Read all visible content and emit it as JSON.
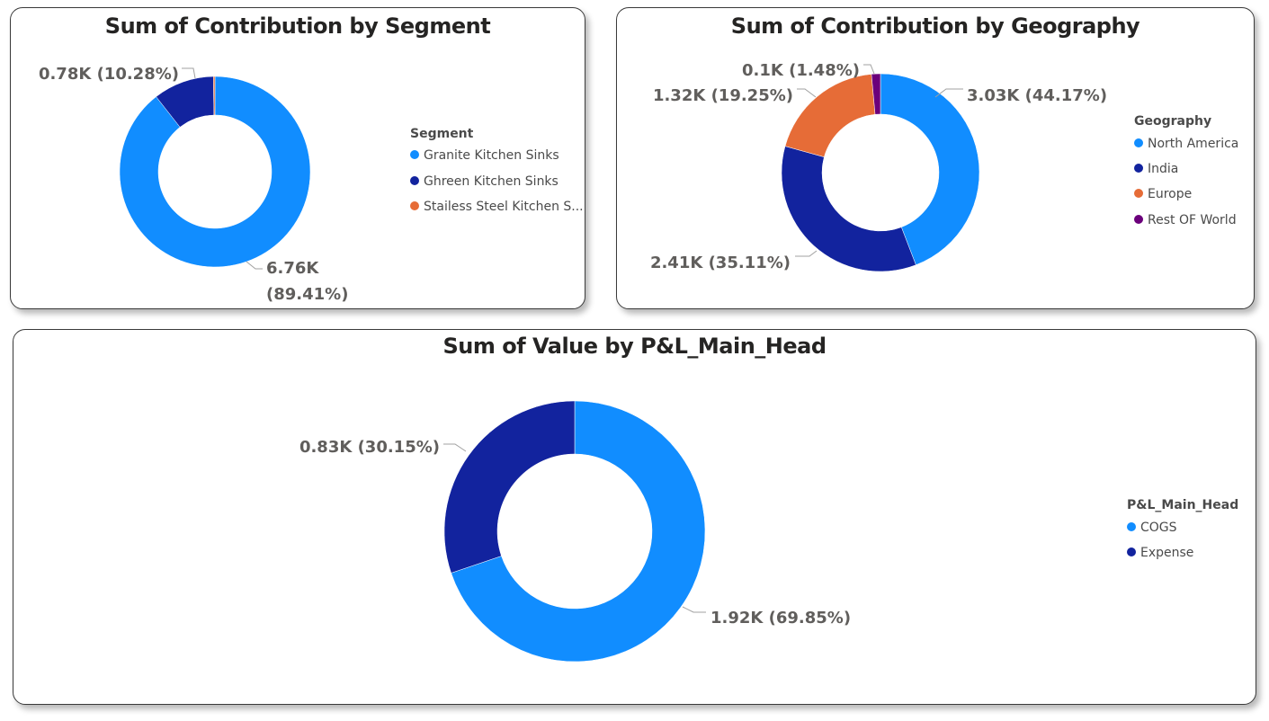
{
  "chart_data": [
    {
      "type": "pie",
      "variant": "donut",
      "title": "Sum of Contribution by Segment",
      "legend_title": "Segment",
      "legend_position": "right",
      "categories": [
        "Granite Kitchen Sinks",
        "Ghreen Kitchen Sinks",
        "Stailess Steel Kitchen Sinks"
      ],
      "legend_labels": [
        "Granite Kitchen Sinks",
        "Ghreen Kitchen Sinks",
        "Stailess Steel Kitchen S..."
      ],
      "values": [
        6.76,
        0.78,
        0.02
      ],
      "percentages": [
        89.41,
        10.28,
        0.31
      ],
      "colors": [
        "#118DFF",
        "#12239E",
        "#E66C37"
      ],
      "data_labels": [
        {
          "lines": [
            "6.76K",
            "(89.41%)"
          ]
        },
        {
          "lines": [
            "0.78K (10.28%)"
          ]
        },
        null
      ],
      "unit": "K"
    },
    {
      "type": "pie",
      "variant": "donut",
      "title": "Sum of Contribution by Geography",
      "legend_title": "Geography",
      "legend_position": "right",
      "categories": [
        "North America",
        "India",
        "Europe",
        "Rest OF World"
      ],
      "legend_labels": [
        "North America",
        "India",
        "Europe",
        "Rest OF World"
      ],
      "values": [
        3.03,
        2.41,
        1.32,
        0.1
      ],
      "percentages": [
        44.17,
        35.11,
        19.25,
        1.48
      ],
      "colors": [
        "#118DFF",
        "#12239E",
        "#E66C37",
        "#6B007B"
      ],
      "data_labels": [
        {
          "lines": [
            "3.03K (44.17%)"
          ]
        },
        {
          "lines": [
            "2.41K (35.11%)"
          ]
        },
        {
          "lines": [
            "1.32K (19.25%)"
          ]
        },
        {
          "lines": [
            "0.1K (1.48%)"
          ]
        }
      ],
      "unit": "K"
    },
    {
      "type": "pie",
      "variant": "donut",
      "title": "Sum of Value by P&L_Main_Head",
      "legend_title": "P&L_Main_Head",
      "legend_position": "right",
      "categories": [
        "COGS",
        "Expense"
      ],
      "legend_labels": [
        "COGS",
        "Expense"
      ],
      "values": [
        1.92,
        0.83
      ],
      "percentages": [
        69.85,
        30.15
      ],
      "colors": [
        "#118DFF",
        "#12239E"
      ],
      "data_labels": [
        {
          "lines": [
            "1.92K (69.85%)"
          ]
        },
        {
          "lines": [
            "0.83K (30.15%)"
          ]
        }
      ],
      "unit": "K"
    }
  ]
}
